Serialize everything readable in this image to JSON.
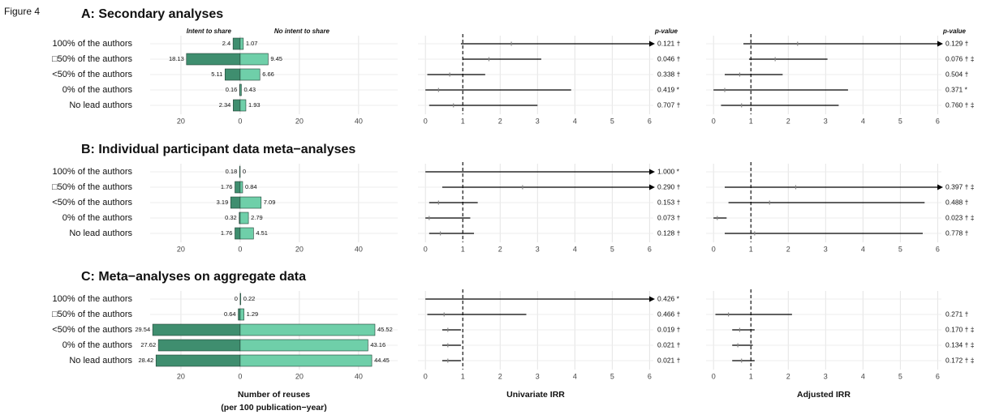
{
  "figure_label": "Figure 4",
  "chart_data": [
    {
      "type": "butterfly",
      "title": "A: Secondary analyses",
      "categories": [
        "100% of the authors",
        "□50% of the authors",
        "<50% of the authors",
        "0% of the authors",
        "No lead authors"
      ],
      "series": [
        {
          "name": "Intent to share",
          "color": "#3f8e6f",
          "values": [
            2.4,
            18.13,
            5.11,
            0.16,
            2.34
          ]
        },
        {
          "name": "No intent to share",
          "color": "#6fcfa9",
          "values": [
            1.07,
            9.45,
            6.66,
            0.43,
            1.93
          ]
        }
      ],
      "xlim": [
        -30.4,
        53.2
      ],
      "xticks": [
        {
          "value": -20,
          "label": "20"
        },
        0,
        20,
        40
      ],
      "grid": true
    },
    {
      "type": "forest",
      "header": "p-value",
      "color": "#000000",
      "reference": 1,
      "values": [
        2.3,
        1.7,
        0.65,
        0.35,
        0.75
      ],
      "ci_low": [
        0.95,
        1.0,
        0.05,
        0.0,
        0.1
      ],
      "ci_high": [
        12,
        3.1,
        1.6,
        3.9,
        3.0
      ],
      "p_values": [
        "0.121 †",
        "0.046 †",
        "0.338 †",
        "0.419 *",
        "0.707 †"
      ],
      "xlim": [
        -0.2,
        6.1
      ],
      "xticks": [
        0,
        1,
        2,
        3,
        4,
        5,
        6
      ],
      "grid": true
    },
    {
      "type": "forest",
      "header": "p-value",
      "color": "#000000",
      "reference": 1,
      "values": [
        2.25,
        1.65,
        0.7,
        0.3,
        0.75
      ],
      "ci_low": [
        0.8,
        0.95,
        0.3,
        0.0,
        0.2
      ],
      "ci_high": [
        12,
        3.05,
        1.85,
        3.6,
        3.35
      ],
      "p_values": [
        "0.129 †",
        "0.076 † ‡",
        "0.504 †",
        "0.371 *",
        "0.760 † ‡"
      ],
      "xlim": [
        -0.2,
        6.1
      ],
      "xticks": [
        0,
        1,
        2,
        3,
        4,
        5,
        6
      ],
      "grid": true
    },
    {
      "type": "butterfly",
      "title": "B: Individual participant data meta−analyses",
      "categories": [
        "100% of the authors",
        "□50% of the authors",
        "<50% of the authors",
        "0% of the authors",
        "No lead authors"
      ],
      "series": [
        {
          "color": "#3f8e6f",
          "values": [
            0.18,
            1.76,
            3.19,
            0.32,
            1.76
          ]
        },
        {
          "color": "#6fcfa9",
          "values": [
            0,
            0.84,
            7.09,
            2.79,
            4.51
          ]
        }
      ],
      "xlim": [
        -30.4,
        53.2
      ],
      "xticks": [
        {
          "value": -20,
          "label": "20"
        },
        0,
        20,
        40
      ],
      "grid": true
    },
    {
      "type": "forest",
      "color": "#000000",
      "reference": 1,
      "values": [
        null,
        2.6,
        0.35,
        0.1,
        0.4
      ],
      "ci_low": [
        0.0,
        0.45,
        0.1,
        0.0,
        0.1
      ],
      "ci_high": [
        12,
        12,
        1.4,
        1.2,
        1.3
      ],
      "p_values": [
        "1.000 *",
        "0.290 †",
        "0.153 †",
        "0.073 †",
        "0.128 †"
      ],
      "xlim": [
        -0.2,
        6.1
      ],
      "xticks": [
        0,
        1,
        2,
        3,
        4,
        5,
        6
      ],
      "grid": true
    },
    {
      "type": "forest",
      "color": "#000000",
      "reference": 1,
      "values": [
        null,
        2.2,
        1.5,
        0.1,
        1.1
      ],
      "ci_low": [
        null,
        0.3,
        0.4,
        0.0,
        0.3
      ],
      "ci_high": [
        null,
        12,
        5.65,
        0.35,
        5.6
      ],
      "p_values": [
        null,
        "0.397 † ‡",
        "0.488 †",
        "0.023 † ‡",
        "0.778 †"
      ],
      "xlim": [
        -0.2,
        6.1
      ],
      "xticks": [
        0,
        1,
        2,
        3,
        4,
        5,
        6
      ],
      "grid": true
    },
    {
      "type": "butterfly",
      "title": "C: Meta−analyses on aggregate data",
      "categories": [
        "100% of the authors",
        "□50% of the authors",
        "<50% of the authors",
        "0% of the authors",
        "No lead authors"
      ],
      "series": [
        {
          "color": "#3f8e6f",
          "values": [
            0,
            0.64,
            29.54,
            27.62,
            28.42
          ]
        },
        {
          "color": "#6fcfa9",
          "values": [
            0.22,
            1.29,
            45.52,
            43.16,
            44.45
          ]
        }
      ],
      "xlim": [
        -30.4,
        53.2
      ],
      "xticks": [
        {
          "value": -20,
          "label": "20"
        },
        0,
        20,
        40
      ],
      "grid": true,
      "xlabel": [
        "Number of reuses",
        "(per 100 publication−year)"
      ]
    },
    {
      "type": "forest",
      "color": "#000000",
      "reference": 1,
      "values": [
        null,
        0.5,
        0.6,
        0.6,
        0.6
      ],
      "ci_low": [
        0.0,
        0.05,
        0.45,
        0.45,
        0.45
      ],
      "ci_high": [
        12,
        2.7,
        0.95,
        0.95,
        0.95
      ],
      "p_values": [
        "0.426 *",
        "0.466 †",
        "0.019 †",
        "0.021 †",
        "0.021 †"
      ],
      "xlim": [
        -0.2,
        6.1
      ],
      "xticks": [
        0,
        1,
        2,
        3,
        4,
        5,
        6
      ],
      "grid": true,
      "xlabel": "Univariate IRR"
    },
    {
      "type": "forest",
      "color": "#000000",
      "reference": 1,
      "values": [
        null,
        0.4,
        0.7,
        0.65,
        0.75
      ],
      "ci_low": [
        null,
        0.05,
        0.5,
        0.5,
        0.5
      ],
      "ci_high": [
        null,
        2.1,
        1.1,
        1.05,
        1.1
      ],
      "p_values": [
        null,
        "0.271 †",
        "0.170 † ‡",
        "0.134 † ‡",
        "0.172 † ‡"
      ],
      "xlim": [
        -0.2,
        6.1
      ],
      "xticks": [
        0,
        1,
        2,
        3,
        4,
        5,
        6
      ],
      "grid": true,
      "xlabel": "Adjusted IRR"
    }
  ]
}
